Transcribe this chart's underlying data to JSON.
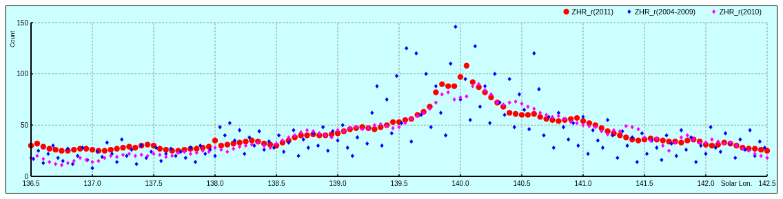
{
  "chart_data": {
    "type": "scatter",
    "xlabel": "Solar Lon.",
    "ylabel": "Count",
    "xlim": [
      136.5,
      142.5
    ],
    "ylim": [
      0,
      150
    ],
    "xticks": [
      136.5,
      {
        "value": 137,
        "label": "137.0"
      },
      137.5,
      {
        "value": 138,
        "label": "138.0"
      },
      138.5,
      {
        "value": 139,
        "label": "139.0"
      },
      139.5,
      {
        "value": 140,
        "label": "140.0"
      },
      140.5,
      {
        "value": 141,
        "label": "141.0"
      },
      141.5,
      {
        "value": 142,
        "label": "142.0"
      },
      142.5
    ],
    "yticks": [
      0,
      50,
      100,
      150
    ],
    "grid": true,
    "legend": "top right",
    "x": [
      136.5,
      136.55,
      136.6,
      136.65,
      136.7,
      136.75,
      136.8,
      136.85,
      136.9,
      136.95,
      137,
      137.05,
      137.1,
      137.15,
      137.2,
      137.25,
      137.3,
      137.35,
      137.4,
      137.45,
      137.5,
      137.55,
      137.6,
      137.65,
      137.7,
      137.75,
      137.8,
      137.85,
      137.9,
      137.95,
      138,
      138.05,
      138.1,
      138.15,
      138.2,
      138.25,
      138.3,
      138.35,
      138.4,
      138.45,
      138.5,
      138.55,
      138.6,
      138.65,
      138.7,
      138.75,
      138.8,
      138.85,
      138.9,
      138.95,
      139,
      139.05,
      139.1,
      139.15,
      139.2,
      139.25,
      139.3,
      139.35,
      139.4,
      139.45,
      139.5,
      139.55,
      139.6,
      139.65,
      139.7,
      139.75,
      139.8,
      139.85,
      139.9,
      139.95,
      140,
      140.05,
      140.1,
      140.15,
      140.2,
      140.25,
      140.3,
      140.35,
      140.4,
      140.45,
      140.5,
      140.55,
      140.6,
      140.65,
      140.7,
      140.75,
      140.8,
      140.85,
      140.9,
      140.95,
      141,
      141.05,
      141.1,
      141.15,
      141.2,
      141.25,
      141.3,
      141.35,
      141.4,
      141.45,
      141.5,
      141.55,
      141.6,
      141.65,
      141.7,
      141.75,
      141.8,
      141.85,
      141.9,
      141.95,
      142,
      142.05,
      142.1,
      142.15,
      142.2,
      142.25,
      142.3,
      142.35,
      142.4,
      142.45,
      142.5
    ],
    "series": [
      {
        "name": "ZHR_r(2011)",
        "color": "#ff0000",
        "marker": "circle",
        "values": [
          30,
          32,
          29,
          27,
          26,
          25,
          25,
          26,
          27,
          27,
          26,
          25,
          25,
          26,
          27,
          28,
          29,
          28,
          30,
          31,
          30,
          27,
          26,
          25,
          25,
          26,
          27,
          27,
          28,
          29,
          35,
          30,
          31,
          32,
          33,
          34,
          35,
          34,
          32,
          31,
          30,
          33,
          35,
          38,
          40,
          40,
          41,
          40,
          40,
          41,
          42,
          44,
          46,
          47,
          48,
          47,
          46,
          48,
          50,
          53,
          53,
          55,
          56,
          60,
          63,
          68,
          82,
          90,
          88,
          88,
          97,
          108,
          92,
          87,
          82,
          77,
          72,
          68,
          62,
          61,
          60,
          60,
          61,
          58,
          56,
          55,
          54,
          55,
          56,
          57,
          54,
          52,
          50,
          47,
          44,
          42,
          40,
          38,
          36,
          35,
          36,
          37,
          36,
          35,
          34,
          34,
          33,
          35,
          36,
          34,
          31,
          30,
          31,
          33,
          32,
          30,
          28,
          27,
          27,
          26,
          25
        ]
      },
      {
        "name": "ZHR_r(2004-2009)",
        "color": "#0000ff",
        "marker": "diamond",
        "x": [
          136.52,
          136.56,
          136.6,
          136.64,
          136.68,
          136.72,
          136.76,
          136.8,
          136.84,
          136.88,
          136.92,
          136.96,
          137,
          137.04,
          137.08,
          137.12,
          137.16,
          137.2,
          137.24,
          137.28,
          137.32,
          137.36,
          137.4,
          137.44,
          137.48,
          137.52,
          137.56,
          137.6,
          137.64,
          137.68,
          137.72,
          137.76,
          137.8,
          137.84,
          137.88,
          137.92,
          137.96,
          138,
          138.04,
          138.08,
          138.12,
          138.16,
          138.2,
          138.24,
          138.28,
          138.32,
          138.36,
          138.4,
          138.44,
          138.48,
          138.52,
          138.56,
          138.6,
          138.64,
          138.68,
          138.72,
          138.76,
          138.8,
          138.84,
          138.88,
          138.92,
          138.96,
          139,
          139.04,
          139.08,
          139.12,
          139.16,
          139.24,
          139.28,
          139.32,
          139.36,
          139.4,
          139.44,
          139.48,
          139.52,
          139.56,
          139.6,
          139.64,
          139.68,
          139.72,
          139.76,
          139.8,
          139.84,
          139.88,
          139.92,
          139.96,
          140,
          140.04,
          140.08,
          140.12,
          140.16,
          140.2,
          140.24,
          140.28,
          140.32,
          140.36,
          140.4,
          140.44,
          140.48,
          140.52,
          140.56,
          140.6,
          140.64,
          140.68,
          140.72,
          140.76,
          140.8,
          140.84,
          140.88,
          140.92,
          140.96,
          141,
          141.04,
          141.08,
          141.12,
          141.16,
          141.2,
          141.24,
          141.28,
          141.32,
          141.36,
          141.4,
          141.44,
          141.48,
          141.52,
          141.56,
          141.6,
          141.64,
          141.68,
          141.72,
          141.76,
          141.8,
          141.84,
          141.88,
          141.92,
          141.96,
          142,
          142.04,
          142.08,
          142.12,
          142.16,
          142.2,
          142.24,
          142.28,
          142.32,
          142.36,
          142.4,
          142.44,
          142.48
        ],
        "values": [
          17,
          25,
          13,
          22,
          30,
          18,
          15,
          27,
          12,
          20,
          28,
          16,
          8,
          24,
          19,
          33,
          22,
          14,
          36,
          20,
          26,
          12,
          30,
          18,
          24,
          28,
          15,
          22,
          27,
          20,
          24,
          18,
          28,
          14,
          30,
          22,
          26,
          20,
          48,
          40,
          52,
          35,
          45,
          22,
          38,
          30,
          44,
          26,
          34,
          28,
          40,
          24,
          33,
          45,
          20,
          36,
          28,
          42,
          30,
          48,
          25,
          44,
          35,
          50,
          28,
          20,
          38,
          32,
          62,
          88,
          30,
          75,
          42,
          98,
          52,
          125,
          34,
          120,
          60,
          100,
          48,
          88,
          62,
          40,
          110,
          146,
          75,
          95,
          55,
          127,
          68,
          88,
          52,
          100,
          72,
          60,
          95,
          48,
          80,
          65,
          46,
          120,
          85,
          40,
          58,
          28,
          62,
          48,
          36,
          52,
          30,
          58,
          22,
          45,
          35,
          28,
          55,
          40,
          18,
          44,
          30,
          38,
          14,
          42,
          22,
          35,
          28,
          16,
          40,
          32,
          20,
          45,
          26,
          38,
          14,
          30,
          22,
          48,
          28,
          24,
          42,
          32,
          18,
          36,
          26,
          45,
          20,
          34,
          28
        ]
      },
      {
        "name": "ZHR_r(2010)",
        "color": "#ff00ff",
        "marker": "diamond",
        "values": [
          18,
          20,
          17,
          14,
          12,
          11,
          13,
          15,
          18,
          16,
          14,
          15,
          18,
          20,
          19,
          21,
          22,
          20,
          21,
          20,
          22,
          21,
          19,
          20,
          23,
          24,
          22,
          23,
          25,
          24,
          28,
          26,
          24,
          27,
          29,
          30,
          31,
          33,
          30,
          28,
          32,
          35,
          38,
          40,
          43,
          45,
          44,
          42,
          40,
          38,
          45,
          44,
          47,
          48,
          46,
          47,
          50,
          51,
          49,
          47,
          48,
          52,
          56,
          59,
          62,
          66,
          72,
          80,
          82,
          75,
          77,
          78,
          88,
          90,
          84,
          80,
          72,
          70,
          72,
          73,
          71,
          68,
          66,
          62,
          60,
          58,
          59,
          56,
          53,
          52,
          50,
          49,
          48,
          44,
          41,
          45,
          44,
          49,
          48,
          46,
          38,
          35,
          37,
          30,
          25,
          33,
          38,
          40,
          36,
          33,
          33,
          36,
          34,
          32,
          33,
          30,
          27,
          25,
          22,
          20,
          18
        ]
      }
    ]
  }
}
